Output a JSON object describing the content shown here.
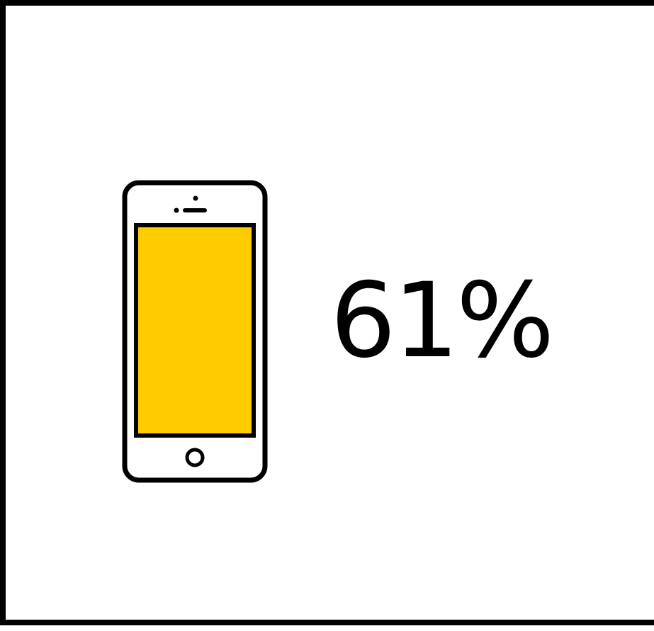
{
  "stat": {
    "value_text": "61%",
    "value": 61,
    "unit": "%"
  },
  "icon": {
    "name": "smartphone-icon",
    "screen_color": "#FFCC00",
    "outline_color": "#000000",
    "body_color": "#FFFFFF"
  },
  "colors": {
    "frame": "#000000",
    "background": "#FFFFFF",
    "text": "#000000"
  }
}
